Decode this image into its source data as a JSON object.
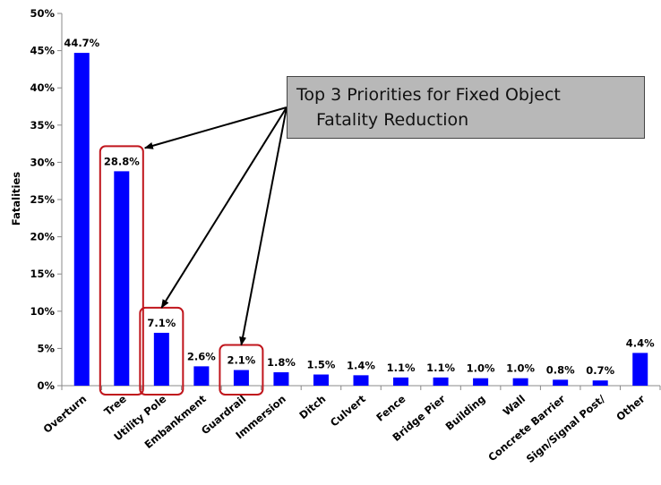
{
  "chart_data": {
    "type": "bar",
    "ylabel": "Fatalities",
    "ylim": [
      0,
      50
    ],
    "yticks": [
      "0%",
      "5%",
      "10%",
      "15%",
      "20%",
      "25%",
      "30%",
      "35%",
      "40%",
      "45%",
      "50%"
    ],
    "categories": [
      "Overturn",
      "Tree",
      "Utility Pole",
      "Embankment",
      "Guardrail",
      "Immersion",
      "Ditch",
      "Culvert",
      "Fence",
      "Bridge Pier",
      "Building",
      "Wall",
      "Concrete Barrier",
      "Sign/Signal Post/",
      "Other"
    ],
    "values": [
      44.7,
      28.8,
      7.1,
      2.6,
      2.1,
      1.8,
      1.5,
      1.4,
      1.1,
      1.1,
      1.0,
      1.0,
      0.8,
      0.7,
      4.4
    ],
    "labels": [
      "44.7%",
      "28.8%",
      "7.1%",
      "2.6%",
      "2.1%",
      "1.8%",
      "1.5%",
      "1.4%",
      "1.1%",
      "1.1%",
      "1.0%",
      "1.0%",
      "0.8%",
      "0.7%",
      "4.4%"
    ],
    "bar_color": "#0000ff",
    "highlight_color": "#c0151c",
    "highlighted_categories": [
      "Tree",
      "Utility Pole",
      "Guardrail"
    ],
    "grid": false,
    "annotation": {
      "line1": "Top 3 Priorities for Fixed Object",
      "line2": "Fatality Reduction",
      "background": "#b8b8b8"
    }
  }
}
